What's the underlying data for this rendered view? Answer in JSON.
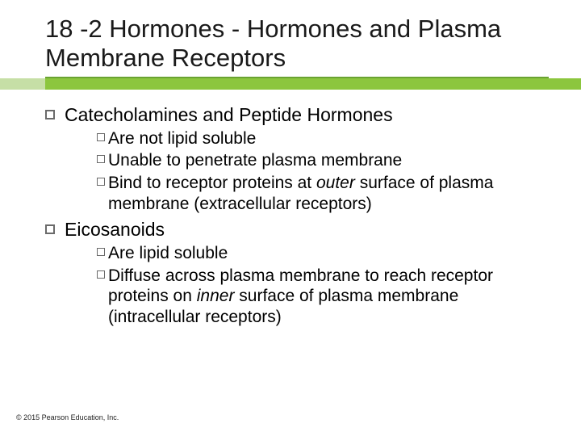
{
  "colors": {
    "title_underline": "#6aa331",
    "accent_light": "#c6dfa6",
    "accent_dark": "#8cc63e",
    "bullet_border": "#6a6a6a"
  },
  "title": "18 -2 Hormones - Hormones and Plasma Membrane Receptors",
  "sections": [
    {
      "heading": "Catecholamines and Peptide Hormones",
      "items": [
        {
          "prefix": "Are",
          "rest": " not lipid soluble"
        },
        {
          "prefix": "Unable",
          "rest": " to penetrate plasma membrane"
        },
        {
          "prefix": "Bind",
          "rest": " to receptor proteins at ",
          "italic": "outer",
          "after": " surface of plasma membrane (extracellular receptors)"
        }
      ]
    },
    {
      "heading": "Eicosanoids",
      "items": [
        {
          "prefix": "Are",
          "rest": " lipid soluble"
        },
        {
          "prefix": "Diffuse",
          "rest": " across plasma membrane to reach receptor proteins on ",
          "italic": "inner",
          "after": " surface of plasma membrane (intracellular receptors)"
        }
      ]
    }
  ],
  "footer": "© 2015 Pearson Education, Inc."
}
